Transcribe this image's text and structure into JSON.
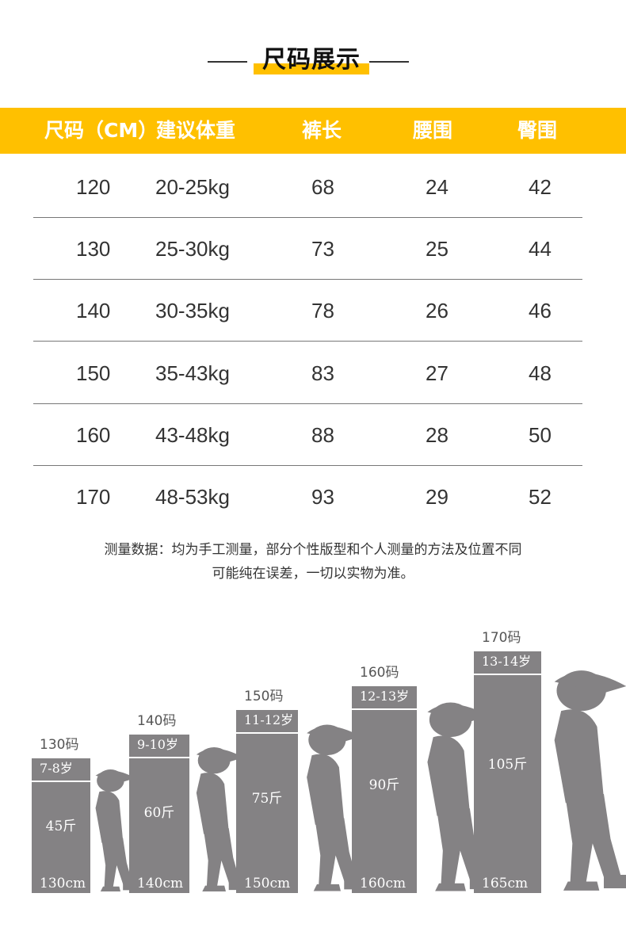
{
  "title": "尺码展示",
  "table": {
    "headers": [
      "尺码（CM）",
      "建议体重",
      "裤长",
      "腰围",
      "臀围"
    ],
    "rows": [
      [
        "120",
        "20-25kg",
        "68",
        "24",
        "42"
      ],
      [
        "130",
        "25-30kg",
        "73",
        "25",
        "44"
      ],
      [
        "140",
        "30-35kg",
        "78",
        "26",
        "46"
      ],
      [
        "150",
        "35-43kg",
        "83",
        "27",
        "48"
      ],
      [
        "160",
        "43-48kg",
        "88",
        "28",
        "50"
      ],
      [
        "170",
        "48-53kg",
        "93",
        "29",
        "52"
      ]
    ]
  },
  "note": {
    "line1": "测量数据：均为手工测量，部分个性版型和个人测量的方法及位置不同",
    "line2": "可能纯在误差，一切以实物为准。"
  },
  "height_chart": [
    {
      "size": "130码",
      "age": "7-8岁",
      "weight": "45斤",
      "height": "130cm"
    },
    {
      "size": "140码",
      "age": "9-10岁",
      "weight": "60斤",
      "height": "140cm"
    },
    {
      "size": "150码",
      "age": "11-12岁",
      "weight": "75斤",
      "height": "150cm"
    },
    {
      "size": "160码",
      "age": "12-13岁",
      "weight": "90斤",
      "height": "160cm"
    },
    {
      "size": "170码",
      "age": "13-14岁",
      "weight": "105斤",
      "height": "165cm"
    }
  ],
  "colors": {
    "accent": "#ffc000",
    "bar": "#848284",
    "text": "#333333"
  }
}
